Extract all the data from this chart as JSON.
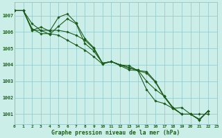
{
  "title": "Graphe pression niveau de la mer (hPa)",
  "bg_color": "#cceee8",
  "grid_color": "#99cccc",
  "line_color": "#1a5c1a",
  "x_min": 0,
  "x_max": 23,
  "y_min": 1000.4,
  "y_max": 1007.8,
  "y_ticks": [
    1001,
    1002,
    1003,
    1004,
    1005,
    1006,
    1007
  ],
  "series": [
    [
      1007.3,
      1007.3,
      1006.5,
      1006.1,
      1006.1,
      1006.1,
      1006.0,
      1005.8,
      1005.5,
      1005.0,
      1004.1,
      1004.2,
      1004.0,
      1003.8,
      1003.7,
      1003.0,
      1002.5,
      1002.1,
      1001.4,
      1001.0,
      1001.0,
      1000.7,
      1001.2
    ],
    [
      1007.3,
      1007.3,
      1006.2,
      1005.9,
      1005.9,
      1005.8,
      1005.5,
      1005.2,
      1004.9,
      1004.5,
      1004.05,
      1004.2,
      1003.95,
      1003.7,
      1003.65,
      1002.5,
      1001.8,
      1001.65,
      1001.35,
      1001.4,
      1001.0,
      1001.0,
      1001.0
    ],
    [
      1007.3,
      1007.3,
      1006.1,
      1006.1,
      1005.85,
      1006.35,
      1006.8,
      1006.5,
      1005.3,
      1004.85,
      1004.1,
      1004.2,
      1004.0,
      1003.95,
      1003.65,
      1003.6,
      1003.0,
      1002.1,
      1001.4,
      1001.0,
      1001.0,
      1000.65,
      1001.2
    ],
    [
      1007.3,
      1007.3,
      1006.1,
      1006.3,
      1006.05,
      1006.9,
      1007.1,
      1006.55,
      1005.6,
      1005.05,
      1004.1,
      1004.2,
      1004.0,
      1003.85,
      1003.65,
      1003.5,
      1002.95,
      1002.05,
      1001.35,
      1001.0,
      1001.0,
      1000.65,
      1001.2
    ]
  ]
}
